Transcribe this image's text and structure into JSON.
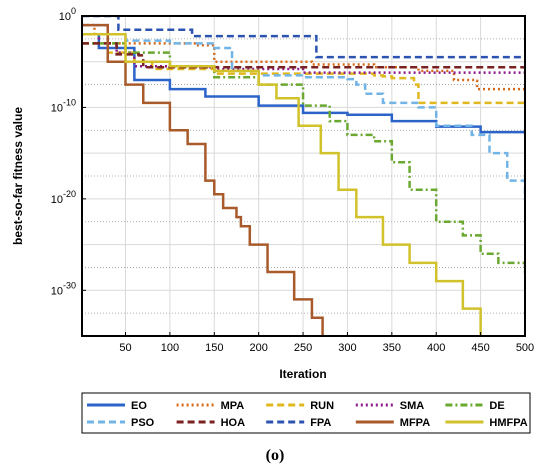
{
  "chart_data": {
    "type": "line",
    "xlabel": "Iteration",
    "ylabel": "best-so-far fitness value",
    "panel_label": "(o)",
    "x_ticks": [
      50,
      100,
      150,
      200,
      250,
      300,
      350,
      400,
      450,
      500
    ],
    "y_ticks": [
      {
        "base": "10",
        "exp": "0",
        "value": 1
      },
      {
        "base": "10",
        "exp": "-10",
        "value": 1e-10
      },
      {
        "base": "10",
        "exp": "-20",
        "value": 1e-20
      },
      {
        "base": "10",
        "exp": "-30",
        "value": 1e-30
      }
    ],
    "xlim": [
      1,
      500
    ],
    "ylim_log10": [
      -35,
      0
    ],
    "y_scale": "log",
    "grid": true,
    "legend_position": "bottom",
    "series": [
      {
        "name": "EO",
        "color": "#2b63c9",
        "dash": "solid",
        "points": [
          [
            1,
            -2
          ],
          [
            20,
            -3.5
          ],
          [
            60,
            -7
          ],
          [
            100,
            -8
          ],
          [
            140,
            -8.8
          ],
          [
            200,
            -9.8
          ],
          [
            250,
            -10.6
          ],
          [
            300,
            -10.8
          ],
          [
            350,
            -11.5
          ],
          [
            400,
            -12.1
          ],
          [
            450,
            -12.7
          ],
          [
            500,
            -12.9
          ]
        ]
      },
      {
        "name": "MPA",
        "color": "#d46a1a",
        "dash": "dot",
        "points": [
          [
            1,
            -1
          ],
          [
            15,
            -2
          ],
          [
            30,
            -3
          ],
          [
            100,
            -3
          ],
          [
            130,
            -3.2
          ],
          [
            150,
            -5
          ],
          [
            200,
            -5
          ],
          [
            260,
            -5.3
          ],
          [
            330,
            -5.6
          ],
          [
            380,
            -6
          ],
          [
            420,
            -7
          ],
          [
            445,
            -7.1
          ],
          [
            446,
            -8
          ],
          [
            500,
            -8
          ]
        ]
      },
      {
        "name": "RUN",
        "color": "#e0b81d",
        "dash": "dash",
        "points": [
          [
            1,
            -3
          ],
          [
            30,
            -4
          ],
          [
            60,
            -5
          ],
          [
            80,
            -5.8
          ],
          [
            140,
            -5.8
          ],
          [
            150,
            -6.3
          ],
          [
            300,
            -6.3
          ],
          [
            330,
            -6.5
          ],
          [
            340,
            -6.6
          ],
          [
            350,
            -6.8
          ],
          [
            370,
            -6.8
          ],
          [
            375,
            -7.5
          ],
          [
            380,
            -9.5
          ],
          [
            500,
            -9.6
          ],
          [
            510,
            -14.5
          ]
        ]
      },
      {
        "name": "SMA",
        "color": "#8b1a8b",
        "dash": "dot",
        "points": [
          [
            1,
            -2
          ],
          [
            20,
            -3
          ],
          [
            40,
            -4
          ],
          [
            60,
            -5.5
          ],
          [
            110,
            -5.6
          ],
          [
            150,
            -5.8
          ],
          [
            250,
            -6.2
          ],
          [
            300,
            -6.2
          ],
          [
            400,
            -6.2
          ],
          [
            500,
            -6.2
          ]
        ]
      },
      {
        "name": "DE",
        "color": "#6aa830",
        "dash": "dashdot",
        "points": [
          [
            1,
            -3
          ],
          [
            50,
            -4
          ],
          [
            100,
            -5.5
          ],
          [
            150,
            -6.7
          ],
          [
            200,
            -7.5
          ],
          [
            250,
            -9.8
          ],
          [
            280,
            -11.5
          ],
          [
            300,
            -13
          ],
          [
            330,
            -13.7
          ],
          [
            350,
            -16
          ],
          [
            370,
            -19
          ],
          [
            400,
            -22.5
          ],
          [
            430,
            -24
          ],
          [
            450,
            -26
          ],
          [
            470,
            -27
          ],
          [
            500,
            -28
          ],
          [
            510,
            -29
          ]
        ]
      },
      {
        "name": "PSO",
        "color": "#72b4e6",
        "dash": "dash",
        "points": [
          [
            1,
            -1
          ],
          [
            30,
            -2
          ],
          [
            50,
            -2.7
          ],
          [
            100,
            -3
          ],
          [
            150,
            -3.5
          ],
          [
            170,
            -6
          ],
          [
            200,
            -6.5
          ],
          [
            250,
            -6.7
          ],
          [
            300,
            -6.9
          ],
          [
            310,
            -7.5
          ],
          [
            320,
            -8.5
          ],
          [
            340,
            -9.5
          ],
          [
            380,
            -10
          ],
          [
            400,
            -12
          ],
          [
            440,
            -13
          ],
          [
            460,
            -15
          ],
          [
            480,
            -18
          ],
          [
            500,
            -20
          ],
          [
            510,
            -23
          ]
        ]
      },
      {
        "name": "HOA",
        "color": "#7a2222",
        "dash": "dash",
        "points": [
          [
            1,
            -3
          ],
          [
            40,
            -4.2
          ],
          [
            65,
            -4.3
          ],
          [
            70,
            -5.6
          ],
          [
            500,
            -5.8
          ]
        ]
      },
      {
        "name": "FPA",
        "color": "#2d53b0",
        "dash": "dash",
        "points": [
          [
            1,
            0
          ],
          [
            40,
            0
          ],
          [
            42,
            -1.5
          ],
          [
            120,
            -1.5
          ],
          [
            125,
            -2.2
          ],
          [
            260,
            -2.2
          ],
          [
            265,
            -4.5
          ],
          [
            500,
            -4.5
          ]
        ]
      },
      {
        "name": "MFPA",
        "color": "#a85a2a",
        "dash": "solid",
        "points": [
          [
            1,
            -1
          ],
          [
            30,
            -5
          ],
          [
            50,
            -7.5
          ],
          [
            70,
            -9.5
          ],
          [
            100,
            -12.5
          ],
          [
            120,
            -14
          ],
          [
            140,
            -18
          ],
          [
            150,
            -19.5
          ],
          [
            160,
            -21
          ],
          [
            175,
            -22
          ],
          [
            180,
            -23
          ],
          [
            190,
            -25
          ],
          [
            210,
            -28
          ],
          [
            240,
            -31
          ],
          [
            260,
            -33
          ],
          [
            272,
            -36
          ]
        ]
      },
      {
        "name": "HMFPA",
        "color": "#d1c12a",
        "dash": "solid",
        "points": [
          [
            1,
            -2
          ],
          [
            50,
            -5
          ],
          [
            100,
            -5.5
          ],
          [
            150,
            -6
          ],
          [
            200,
            -7.5
          ],
          [
            220,
            -9
          ],
          [
            245,
            -12
          ],
          [
            270,
            -15
          ],
          [
            290,
            -19
          ],
          [
            310,
            -22
          ],
          [
            340,
            -25
          ],
          [
            370,
            -27
          ],
          [
            400,
            -29
          ],
          [
            430,
            -32
          ],
          [
            450,
            -36
          ]
        ]
      }
    ]
  }
}
